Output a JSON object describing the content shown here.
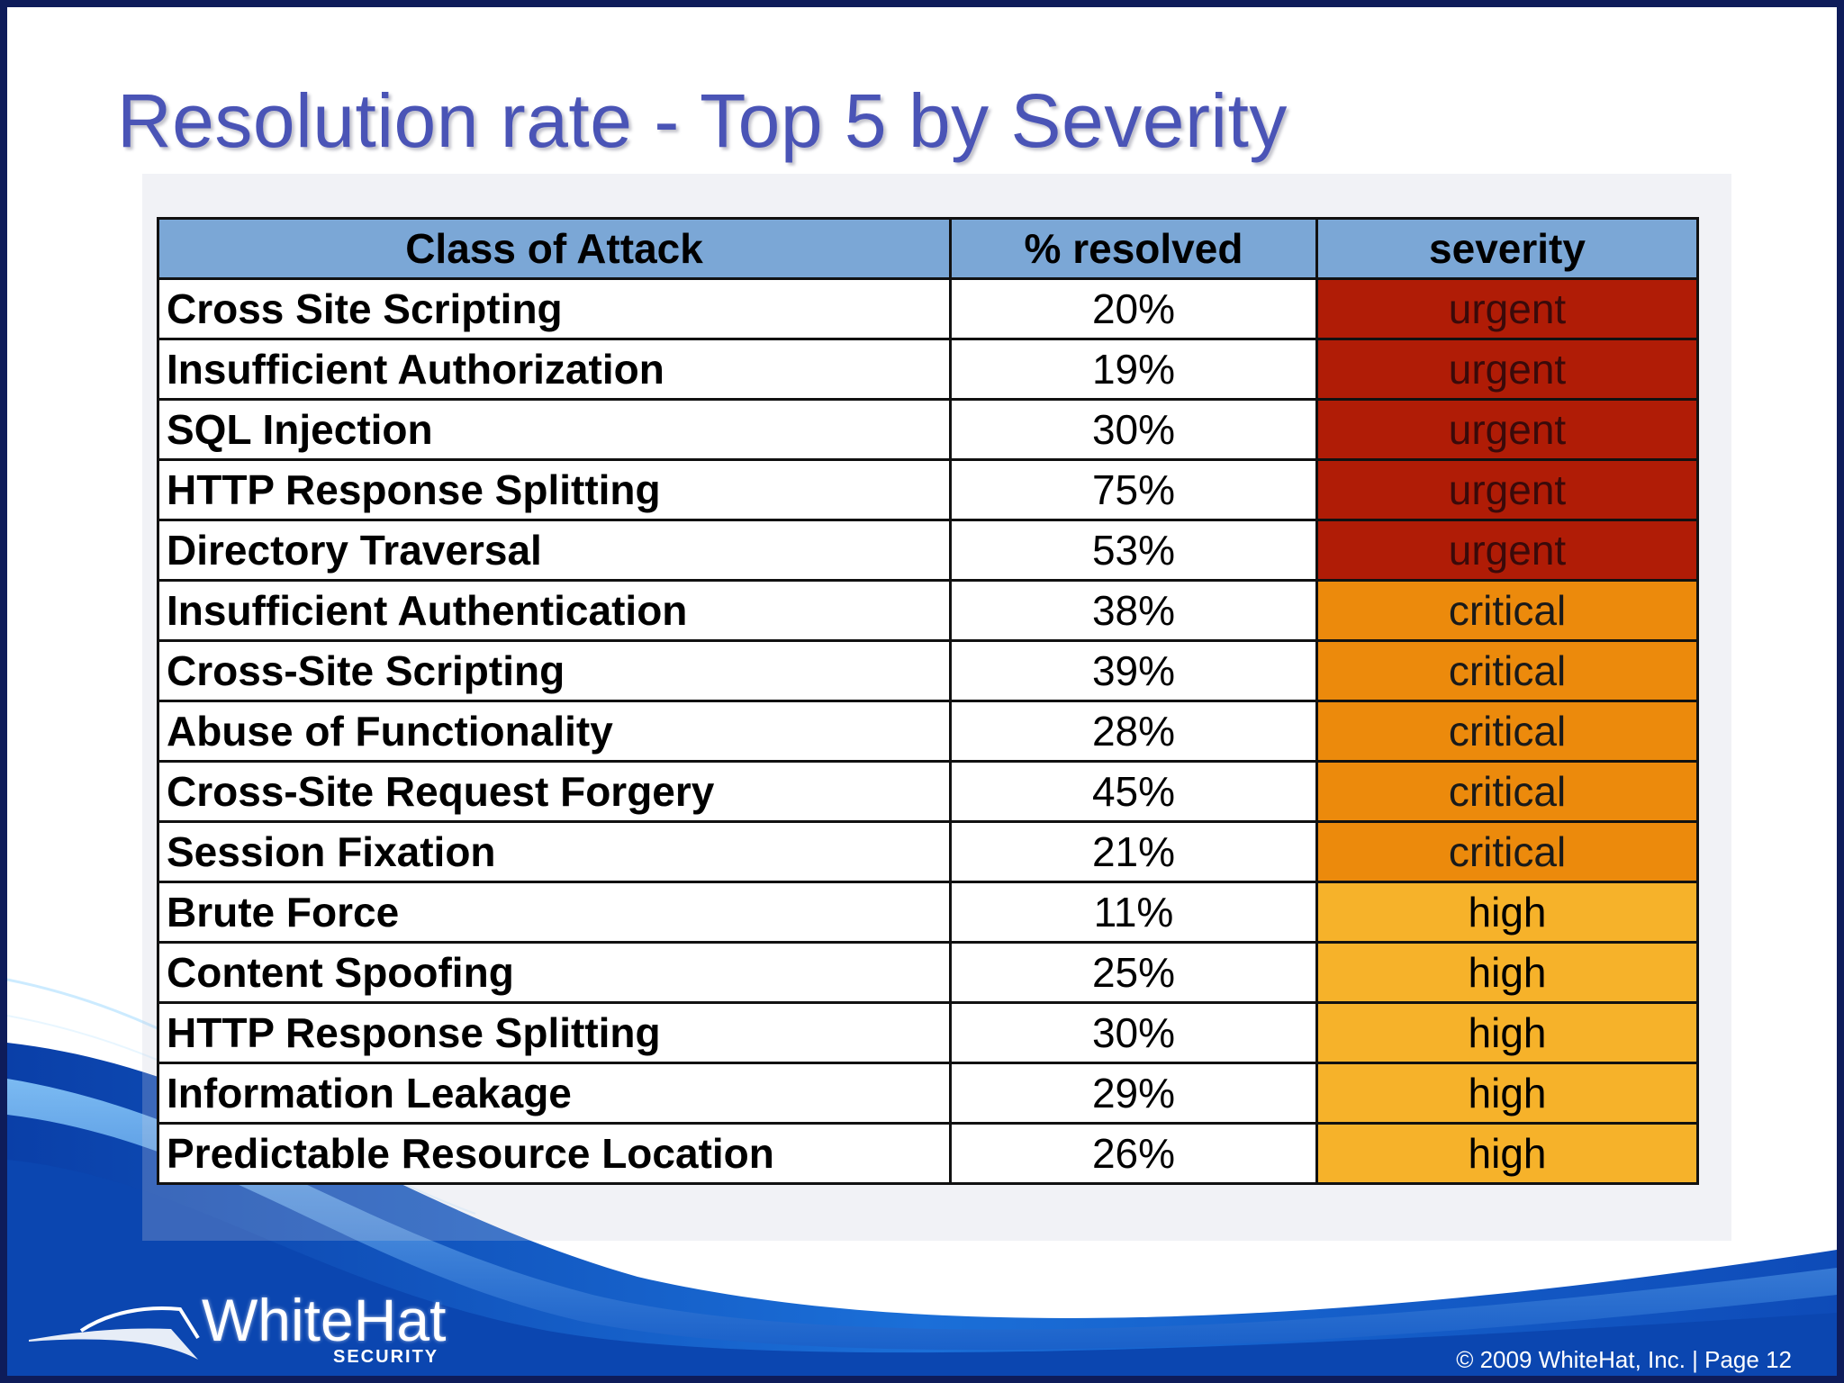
{
  "slide": {
    "title": "Resolution rate - Top 5 by Severity"
  },
  "table": {
    "headers": [
      "Class of Attack",
      "% resolved",
      "severity"
    ],
    "rows": [
      {
        "attack": "Cross Site Scripting",
        "resolved": "20%",
        "severity": "urgent"
      },
      {
        "attack": "Insufficient Authorization",
        "resolved": "19%",
        "severity": "urgent"
      },
      {
        "attack": "SQL Injection",
        "resolved": "30%",
        "severity": "urgent"
      },
      {
        "attack": "HTTP Response Splitting",
        "resolved": "75%",
        "severity": "urgent"
      },
      {
        "attack": "Directory Traversal",
        "resolved": "53%",
        "severity": "urgent"
      },
      {
        "attack": "Insufficient Authentication",
        "resolved": "38%",
        "severity": "critical"
      },
      {
        "attack": "Cross-Site Scripting",
        "resolved": "39%",
        "severity": "critical"
      },
      {
        "attack": "Abuse of Functionality",
        "resolved": "28%",
        "severity": "critical"
      },
      {
        "attack": "Cross-Site Request Forgery",
        "resolved": "45%",
        "severity": "critical"
      },
      {
        "attack": "Session Fixation",
        "resolved": "21%",
        "severity": "critical"
      },
      {
        "attack": "Brute Force",
        "resolved": "11%",
        "severity": "high"
      },
      {
        "attack": "Content Spoofing",
        "resolved": "25%",
        "severity": "high"
      },
      {
        "attack": "HTTP Response Splitting",
        "resolved": "30%",
        "severity": "high"
      },
      {
        "attack": "Information Leakage",
        "resolved": "29%",
        "severity": "high"
      },
      {
        "attack": "Predictable Resource Location",
        "resolved": "26%",
        "severity": "high"
      }
    ]
  },
  "severity_colors": {
    "urgent": {
      "bg": "#b01c06",
      "fg": "#3a0a0a"
    },
    "critical": {
      "bg": "#ec8a0c",
      "fg": "#1a1a1a"
    },
    "high": {
      "bg": "#f6b22a",
      "fg": "#000000"
    }
  },
  "colors": {
    "title": "#4a54b6",
    "header_bg": "#7ba7d6",
    "frame": "#0e1c5a",
    "swoosh": "#1a5fc8"
  },
  "logo": {
    "name": "WhiteHat",
    "sub": "SECURITY"
  },
  "footer": {
    "copyright": "© 2009 WhiteHat, Inc.  |  Page  12"
  }
}
